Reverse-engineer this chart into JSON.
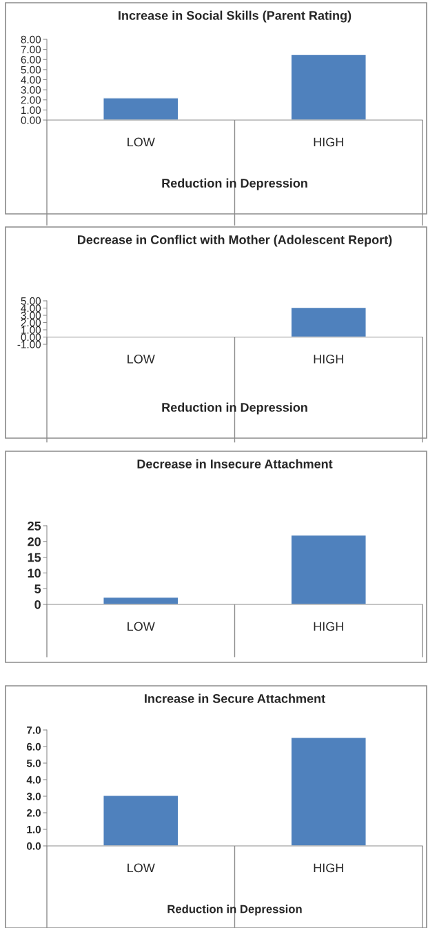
{
  "chart_data": [
    {
      "type": "bar",
      "title": "Increase in Social Skills (Parent Rating)",
      "xlabel": "Reduction in Depression",
      "categories": [
        "LOW",
        "HIGH"
      ],
      "values": [
        2.2,
        6.5
      ],
      "color": "#4f81bd",
      "ylim": [
        0,
        8
      ],
      "yticks": [
        {
          "value": 0,
          "label": "0.00"
        },
        {
          "value": 1,
          "label": "1.00"
        },
        {
          "value": 2,
          "label": "2.00"
        },
        {
          "value": 3,
          "label": "3.00"
        },
        {
          "value": 4,
          "label": "4.00"
        },
        {
          "value": 5,
          "label": "5.00"
        },
        {
          "value": 6,
          "label": "6.00"
        },
        {
          "value": 7,
          "label": "7.00"
        },
        {
          "value": 8,
          "label": "8.00"
        }
      ],
      "grid": false,
      "legend": false
    },
    {
      "type": "bar",
      "title": "Decrease in Conflict with Mother (Adolescent Report)",
      "xlabel": "Reduction in Depression",
      "categories": [
        "LOW",
        "HIGH"
      ],
      "values": [
        -0.1,
        4.1
      ],
      "color": "#4f81bd",
      "ylim": [
        -1,
        5
      ],
      "yticks": [
        {
          "value": -1,
          "label": "-1.00"
        },
        {
          "value": 0,
          "label": "0.00"
        },
        {
          "value": 1,
          "label": "1.00"
        },
        {
          "value": 2,
          "label": "2.00"
        },
        {
          "value": 3,
          "label": "3.00"
        },
        {
          "value": 4,
          "label": "4.00"
        },
        {
          "value": 5,
          "label": "5.00"
        }
      ],
      "grid": false,
      "legend": false
    },
    {
      "type": "bar",
      "title": "Decrease in Insecure Attachment",
      "categories": [
        "LOW",
        "HIGH"
      ],
      "values": [
        2.3,
        22
      ],
      "color": "#4f81bd",
      "ylim": [
        0,
        25
      ],
      "yticks": [
        0,
        5,
        10,
        15,
        20,
        25
      ],
      "grid": false,
      "legend": false
    },
    {
      "type": "bar",
      "title": "Increase in Secure Attachment",
      "xlabel": "Reduction in Depression",
      "categories": [
        "LOW",
        "HIGH"
      ],
      "values": [
        3.05,
        6.55
      ],
      "color": "#4f81bd",
      "ylim": [
        0,
        7
      ],
      "yticks": [
        {
          "value": 0,
          "label": "0.0"
        },
        {
          "value": 1,
          "label": "1.0"
        },
        {
          "value": 2,
          "label": "2.0"
        },
        {
          "value": 3,
          "label": "3.0"
        },
        {
          "value": 4,
          "label": "4.0"
        },
        {
          "value": 5,
          "label": "5.0"
        },
        {
          "value": 6,
          "label": "6.0"
        },
        {
          "value": 7,
          "label": "7.0"
        }
      ],
      "grid": false,
      "legend": false
    }
  ]
}
